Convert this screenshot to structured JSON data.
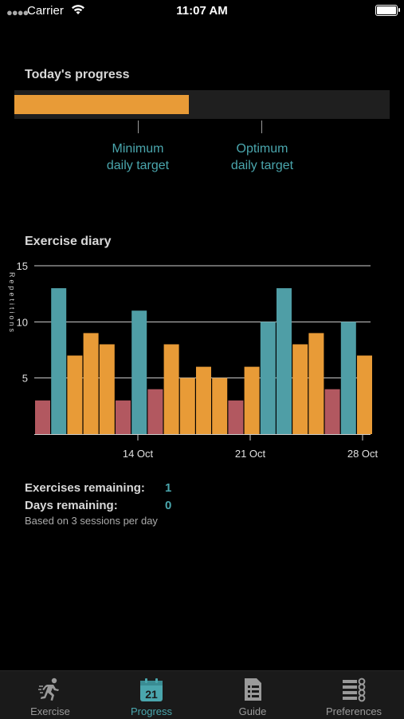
{
  "status_bar": {
    "carrier": "Carrier",
    "time": "11:07 AM"
  },
  "progress": {
    "title": "Today's progress",
    "fraction": 0.465,
    "minimum_label": [
      "Minimum",
      "daily target"
    ],
    "optimum_label": [
      "Optimum",
      "daily target"
    ]
  },
  "diary": {
    "title": "Exercise diary"
  },
  "chart_data": {
    "type": "bar",
    "ylabel": "Repetitions",
    "ylim": [
      0,
      15
    ],
    "yticks": [
      5,
      10,
      15
    ],
    "xticks": [
      "14 Oct",
      "21 Oct",
      "28 Oct"
    ],
    "values": [
      3,
      13,
      7,
      9,
      8,
      3,
      11,
      4,
      8,
      5,
      6,
      5,
      3,
      6,
      10,
      13,
      8,
      9,
      4,
      10,
      7
    ],
    "kinds": [
      "low",
      "high",
      "mid",
      "mid",
      "mid",
      "low",
      "high",
      "low",
      "mid",
      "mid",
      "mid",
      "mid",
      "low",
      "mid",
      "high",
      "high",
      "mid",
      "mid",
      "low",
      "high",
      "mid"
    ],
    "colors": {
      "low": "#b25860",
      "mid": "#e89b37",
      "high": "#4f9ea6"
    }
  },
  "stats": {
    "exercises_label": "Exercises remaining:",
    "exercises_value": "1",
    "days_label": "Days remaining:",
    "days_value": "0",
    "note": "Based on 3 sessions per day"
  },
  "tabs": [
    {
      "label": "Exercise",
      "icon": "runner-icon"
    },
    {
      "label": "Progress",
      "icon": "calendar-icon",
      "badge": "21"
    },
    {
      "label": "Guide",
      "icon": "document-icon"
    },
    {
      "label": "Preferences",
      "icon": "list-settings-icon"
    }
  ],
  "accent_color": "#4aa6ad"
}
